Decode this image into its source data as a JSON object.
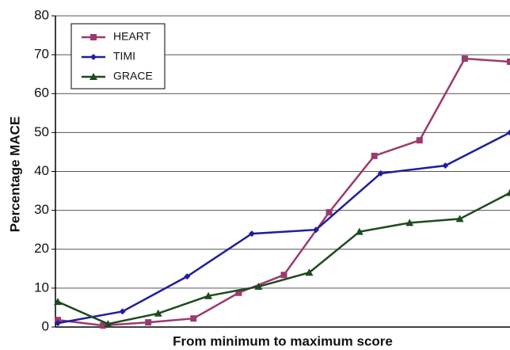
{
  "chart_data": {
    "type": "line",
    "x_label": "From minimum to maximum score",
    "y_label": "Percentage MACE",
    "xlim": [
      0,
      1
    ],
    "ylim": [
      0,
      80
    ],
    "yticks": [
      0,
      10,
      20,
      30,
      40,
      50,
      60,
      70,
      80
    ],
    "grid": true,
    "legend": "upper left",
    "series": [
      {
        "name": "HEART",
        "color": "#9b3a6e",
        "marker": "square",
        "x": [
          0,
          0.1,
          0.2,
          0.3,
          0.4,
          0.5,
          0.6,
          0.7,
          0.8,
          0.9,
          1
        ],
        "values": [
          1.8,
          0.4,
          1.2,
          2.2,
          8.8,
          13.4,
          29.5,
          44,
          48,
          69,
          68.2
        ]
      },
      {
        "name": "TIMI",
        "color": "#1f1f9e",
        "marker": "diamond",
        "x": [
          0,
          0.143,
          0.286,
          0.429,
          0.571,
          0.714,
          0.857,
          1
        ],
        "values": [
          1,
          4,
          13,
          24,
          25,
          39.5,
          41.5,
          50
        ]
      },
      {
        "name": "GRACE",
        "color": "#1f4a1f",
        "marker": "triangle",
        "x": [
          0,
          0.111,
          0.222,
          0.333,
          0.444,
          0.556,
          0.667,
          0.778,
          0.889,
          1
        ],
        "values": [
          6.5,
          0.8,
          3.5,
          8,
          10.4,
          14,
          24.5,
          26.8,
          27.8,
          34.5
        ]
      }
    ]
  }
}
